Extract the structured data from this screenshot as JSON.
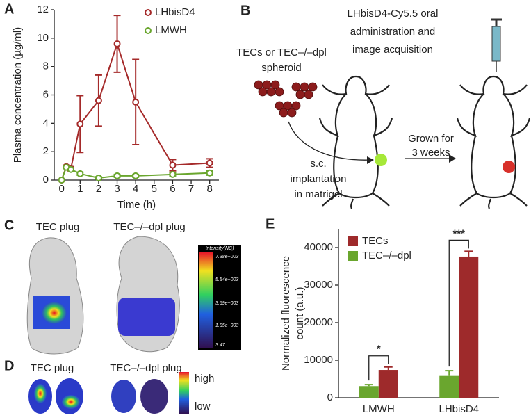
{
  "chart_data": [
    {
      "type": "line",
      "xlabel": "Time (h)",
      "ylabel": "Plasma concentration (µg/ml)",
      "x": [
        0,
        0.25,
        0.5,
        1,
        2,
        3,
        4,
        6,
        8
      ],
      "series": [
        {
          "name": "LHbisD4",
          "color": "#a52a2a",
          "values": [
            0,
            0.95,
            0.8,
            3.95,
            5.6,
            9.6,
            5.5,
            1.05,
            1.2
          ],
          "errors": [
            0,
            0.1,
            0.15,
            2.0,
            1.8,
            2.0,
            3.0,
            0.4,
            0.3
          ]
        },
        {
          "name": "LMWH",
          "color": "#6aa62e",
          "values": [
            0,
            0.9,
            0.75,
            0.45,
            0.15,
            0.3,
            0.3,
            0.4,
            0.5
          ],
          "errors": [
            0,
            0.05,
            0.05,
            0.1,
            0.08,
            0.1,
            0.1,
            0.1,
            0.15
          ]
        }
      ],
      "xlim": [
        -0.4,
        8.5
      ],
      "xticks": [
        0,
        1,
        2,
        3,
        4,
        5,
        6,
        7,
        8
      ],
      "ylim": [
        0,
        12
      ],
      "yticks": [
        0,
        2,
        4,
        6,
        8,
        10,
        12
      ],
      "legend": "upper right"
    },
    {
      "type": "bar",
      "ylabel_lines": [
        "Normalized fluorescence",
        "count (a.u.)"
      ],
      "categories": [
        "LMWH",
        "LHbisD4"
      ],
      "series": [
        {
          "name": "TECs",
          "color": "#9e2a2b",
          "values": [
            7400,
            37600
          ],
          "errors": [
            800,
            1400
          ]
        },
        {
          "name": "TEC–/–dpl",
          "color": "#6aa62e",
          "values": [
            3100,
            5800
          ],
          "errors": [
            400,
            1400
          ]
        }
      ],
      "ylim": [
        0,
        45000
      ],
      "yticks": [
        0,
        10000,
        20000,
        30000,
        40000
      ],
      "annotations": [
        "*",
        "***"
      ],
      "legend": "upper left"
    }
  ],
  "panel_labels": [
    "A",
    "B",
    "C",
    "D",
    "E"
  ],
  "panel_b": {
    "spheroid_label": [
      "TECs or TEC–/–dpl",
      "spheroid"
    ],
    "implant_label": [
      "s.c.",
      "implantation",
      "in matrigel"
    ],
    "grown_label": [
      "Grown for",
      "3 weeks"
    ],
    "admin_label": [
      "LHbisD4-Cy5.5 oral",
      "administration and",
      "image acquisition"
    ]
  },
  "panel_c": {
    "plug_labels": [
      "TEC plug",
      "TEC–/–dpl plug"
    ],
    "colorbar_title": "Intensity(NC)",
    "colorbar_labels": [
      "7.38e+003",
      "5.54e+003",
      "3.69e+003",
      "1.85e+003",
      "3.47"
    ]
  },
  "panel_d": {
    "plug_labels": [
      "TEC plug",
      "TEC–/–dpl plug"
    ],
    "scale_labels": [
      "high",
      "low"
    ]
  }
}
